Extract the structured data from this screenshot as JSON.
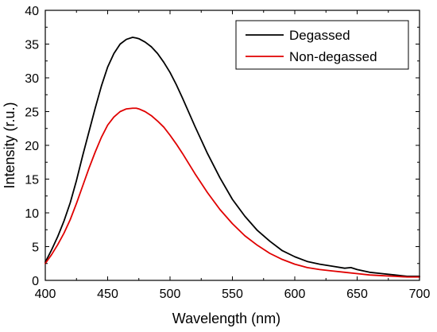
{
  "chart_data": {
    "type": "line",
    "xlabel": "Wavelength (nm)",
    "ylabel": "Intensity (r.u.)",
    "xlim": [
      400,
      700
    ],
    "ylim": [
      0,
      40
    ],
    "xticks": [
      400,
      450,
      500,
      550,
      600,
      650,
      700
    ],
    "yticks": [
      0,
      5,
      10,
      15,
      20,
      25,
      30,
      35,
      40
    ],
    "grid": false,
    "legend_position": "top-right",
    "series": [
      {
        "name": "Degassed",
        "color": "#000000",
        "x": [
          400,
          405,
          410,
          415,
          420,
          425,
          430,
          435,
          440,
          445,
          450,
          455,
          460,
          465,
          470,
          473,
          475,
          480,
          485,
          490,
          495,
          500,
          505,
          510,
          520,
          530,
          540,
          550,
          560,
          570,
          580,
          590,
          600,
          610,
          620,
          630,
          640,
          645,
          650,
          660,
          670,
          680,
          690,
          700
        ],
        "y": [
          2.7,
          4.5,
          6.5,
          8.8,
          11.5,
          14.8,
          18.5,
          22.0,
          25.5,
          28.8,
          31.6,
          33.6,
          35.0,
          35.7,
          36.0,
          35.9,
          35.8,
          35.3,
          34.6,
          33.6,
          32.3,
          30.8,
          29.0,
          27.0,
          22.8,
          18.8,
          15.2,
          12.0,
          9.5,
          7.4,
          5.8,
          4.4,
          3.5,
          2.8,
          2.4,
          2.1,
          1.8,
          1.9,
          1.6,
          1.2,
          1.0,
          0.8,
          0.6,
          0.6
        ]
      },
      {
        "name": "Non-degassed",
        "color": "#e00000",
        "x": [
          400,
          405,
          410,
          415,
          420,
          425,
          430,
          435,
          440,
          445,
          450,
          455,
          460,
          465,
          470,
          473,
          475,
          480,
          485,
          490,
          495,
          500,
          505,
          510,
          520,
          530,
          540,
          550,
          560,
          570,
          580,
          590,
          600,
          610,
          620,
          630,
          640,
          650,
          660,
          670,
          680,
          690,
          700
        ],
        "y": [
          2.5,
          3.8,
          5.3,
          7.0,
          9.0,
          11.4,
          14.0,
          16.6,
          19.0,
          21.2,
          23.0,
          24.2,
          25.0,
          25.4,
          25.5,
          25.5,
          25.4,
          25.0,
          24.4,
          23.6,
          22.7,
          21.5,
          20.2,
          18.8,
          15.8,
          13.0,
          10.5,
          8.4,
          6.6,
          5.2,
          4.0,
          3.1,
          2.4,
          1.9,
          1.6,
          1.4,
          1.2,
          1.0,
          0.8,
          0.7,
          0.6,
          0.5,
          0.5
        ]
      }
    ]
  }
}
